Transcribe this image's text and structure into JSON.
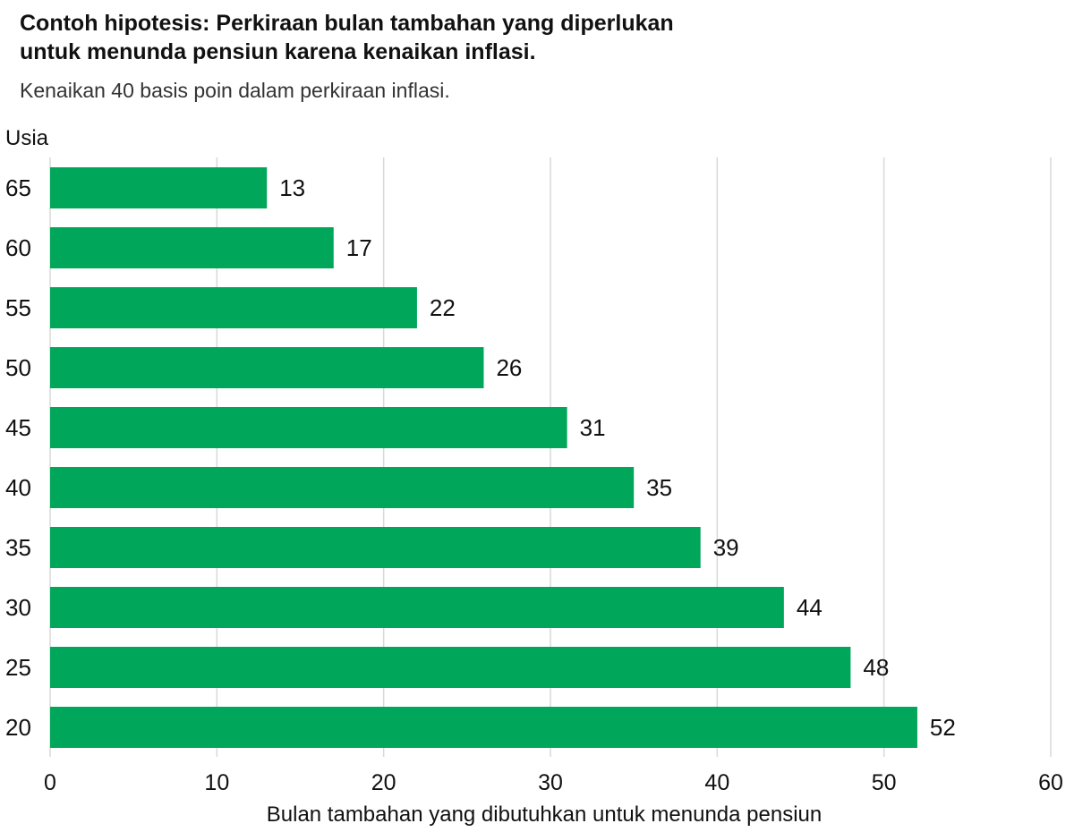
{
  "title": "Contoh hipotesis: Perkiraan bulan tambahan yang diperlukan untuk menunda pensiun karena kenaikan inflasi.",
  "subtitle": "Kenaikan 40 basis poin dalam perkiraan inflasi.",
  "chart_data": {
    "type": "bar",
    "orientation": "horizontal",
    "title": "Contoh hipotesis: Perkiraan bulan tambahan yang diperlukan untuk menunda pensiun karena kenaikan inflasi.",
    "subtitle": "Kenaikan 40 basis poin dalam perkiraan inflasi.",
    "ylabel": "Usia",
    "xlabel": "Bulan tambahan yang dibutuhkan untuk menunda pensiun",
    "categories": [
      "65",
      "60",
      "55",
      "50",
      "45",
      "40",
      "35",
      "30",
      "25",
      "20"
    ],
    "values": [
      13,
      17,
      22,
      26,
      31,
      35,
      39,
      44,
      48,
      52
    ],
    "xlim": [
      0,
      60
    ],
    "xticks": [
      0,
      10,
      20,
      30,
      40,
      50,
      60
    ],
    "grid": "vertical",
    "data_labels": true,
    "bar_color": "#00A65A",
    "grid_color": "#d9d9d9"
  }
}
